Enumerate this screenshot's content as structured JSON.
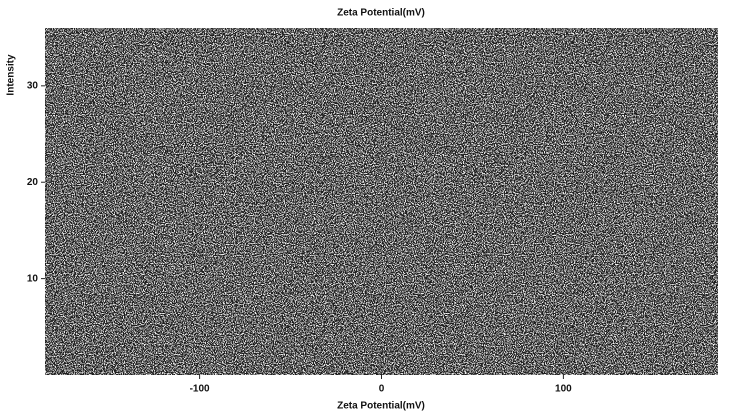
{
  "chart_data": {
    "type": "line",
    "title": "Zeta Potential(mV)",
    "x_label": "Zeta Potential(mV)",
    "y_label": "Intensity",
    "xlim": [
      -185,
      185
    ],
    "xticks": [
      -100,
      0,
      100
    ],
    "ylim": [
      0,
      36
    ],
    "yticks": [
      10,
      20,
      30
    ],
    "series": []
  }
}
